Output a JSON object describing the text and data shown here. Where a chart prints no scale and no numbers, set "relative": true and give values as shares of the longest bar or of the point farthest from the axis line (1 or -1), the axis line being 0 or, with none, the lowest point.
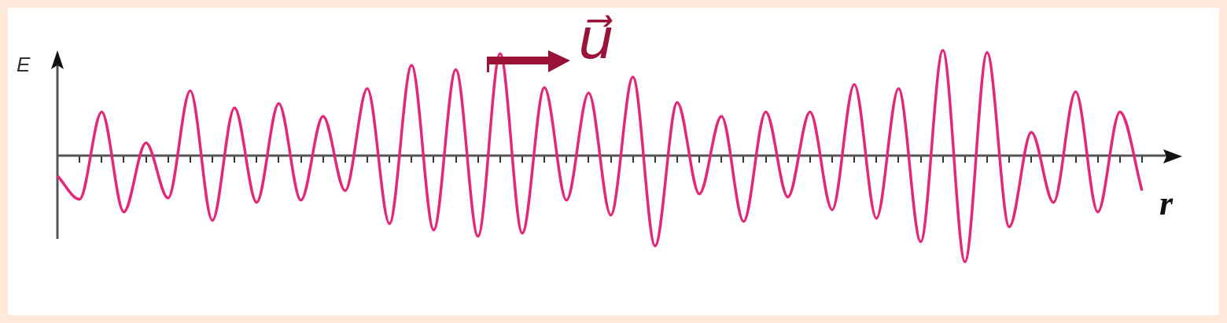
{
  "chart_data": {
    "type": "line",
    "xlabel": "r",
    "ylabel": "E",
    "annotations": [
      "u⃗"
    ],
    "relative": true,
    "marker": "none",
    "line_style": "solid",
    "legend": false,
    "categories": [
      null,
      null,
      null,
      null,
      null,
      null,
      null,
      null,
      null,
      null,
      null,
      null,
      null,
      null,
      null,
      null,
      null,
      null,
      null,
      null,
      null,
      null,
      null,
      null,
      null,
      null,
      null,
      null,
      null,
      null,
      null,
      null,
      null,
      null,
      null,
      null,
      null,
      null,
      null,
      null,
      null,
      null,
      null,
      null,
      null,
      null,
      null,
      null,
      null,
      null
    ],
    "series": [
      {
        "color": "#e3287a",
        "values": [
          -0.19,
          -0.41,
          0.41,
          -0.53,
          0.12,
          -0.4,
          0.61,
          -0.61,
          0.45,
          -0.44,
          0.49,
          -0.42,
          0.37,
          -0.33,
          0.63,
          -0.64,
          0.85,
          -0.7,
          0.81,
          -0.76,
          0.96,
          -0.73,
          0.64,
          -0.42,
          0.59,
          -0.56,
          0.74,
          -0.85,
          0.5,
          -0.36,
          0.37,
          -0.62,
          0.41,
          -0.39,
          0.41,
          -0.51,
          0.67,
          -0.59,
          0.63,
          -0.81,
          0.99,
          -1,
          0.97,
          -0.67,
          0.22,
          -0.44,
          0.6,
          -0.53,
          0.41,
          -0.33
        ]
      }
    ]
  }
}
